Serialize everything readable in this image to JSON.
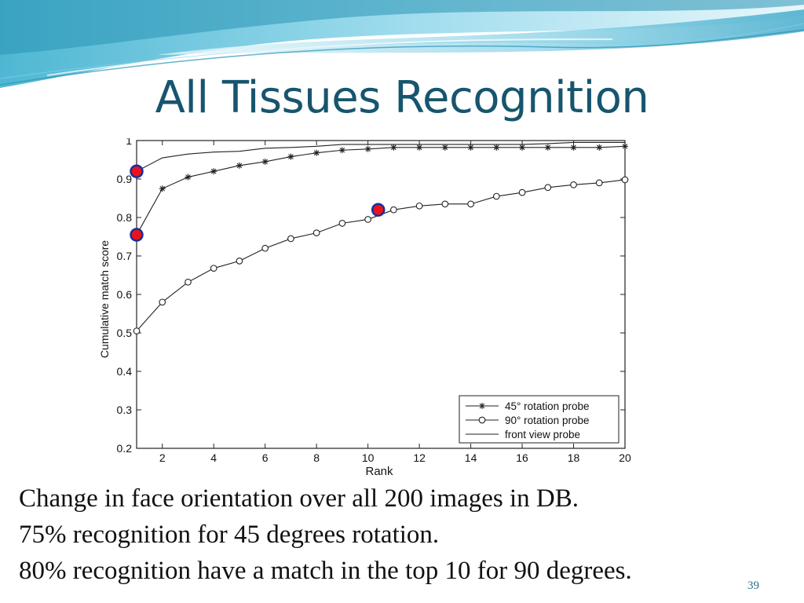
{
  "slide": {
    "title": "All Tissues Recognition",
    "captions": [
      "Change in face orientation over all 200 images in DB.",
      "75% recognition for 45 degrees rotation.",
      "80% recognition have a match in the top 10 for 90 degrees."
    ],
    "slide_number": "39",
    "colors": {
      "title": "#17556e",
      "wave_light": "#cfeef5",
      "wave_mid": "#7fd0e6",
      "wave_dark": "#2a93b4",
      "highlight_marker": "#e8141c",
      "highlight_outline": "#1a2f9a"
    }
  },
  "chart_data": {
    "type": "line",
    "title": "",
    "xlabel": "Rank",
    "ylabel": "Cumulative match score",
    "xlim": [
      1,
      20
    ],
    "ylim": [
      0.2,
      1
    ],
    "xticks": [
      2,
      4,
      6,
      8,
      10,
      12,
      14,
      16,
      18,
      20
    ],
    "yticks": [
      0.2,
      0.3,
      0.4,
      0.5,
      0.6,
      0.7,
      0.8,
      0.9,
      1
    ],
    "legend_position": "bottom-right",
    "grid": false,
    "x": [
      1,
      2,
      3,
      4,
      5,
      6,
      7,
      8,
      9,
      10,
      11,
      12,
      13,
      14,
      15,
      16,
      17,
      18,
      19,
      20
    ],
    "series": [
      {
        "name": "45° rotation probe",
        "marker": "star",
        "values": [
          0.755,
          0.875,
          0.905,
          0.92,
          0.935,
          0.945,
          0.958,
          0.968,
          0.975,
          0.978,
          0.982,
          0.982,
          0.982,
          0.982,
          0.982,
          0.982,
          0.982,
          0.982,
          0.982,
          0.985
        ]
      },
      {
        "name": "90° rotation probe",
        "marker": "circle",
        "values": [
          0.505,
          0.58,
          0.632,
          0.668,
          0.687,
          0.72,
          0.745,
          0.76,
          0.785,
          0.795,
          0.82,
          0.83,
          0.835,
          0.835,
          0.855,
          0.865,
          0.878,
          0.885,
          0.89,
          0.898
        ]
      },
      {
        "name": "front view probe",
        "marker": "none",
        "values": [
          0.92,
          0.955,
          0.965,
          0.97,
          0.972,
          0.98,
          0.982,
          0.985,
          0.99,
          0.99,
          0.99,
          0.99,
          0.99,
          0.99,
          0.99,
          0.99,
          0.992,
          0.995,
          0.995,
          0.995
        ]
      }
    ],
    "highlight_points": [
      {
        "x": 1,
        "y": 0.92
      },
      {
        "x": 1,
        "y": 0.755
      },
      {
        "x": 10.4,
        "y": 0.82
      }
    ]
  }
}
